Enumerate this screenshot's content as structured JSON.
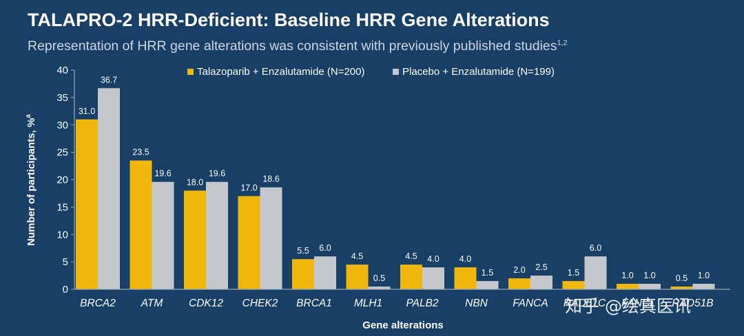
{
  "title": "TALAPRO-2 HRR-Deficient: Baseline HRR Gene Alterations",
  "subtitle": "Representation of HRR gene alterations was consistent with previously published studies",
  "subtitle_sup": "1,2",
  "watermark": "知乎 @绘真医讯",
  "colors": {
    "background": "#183f66",
    "series1": "#f0b80d",
    "series2": "#c4c7cb",
    "axis": "#9aa9bc",
    "text": "#ffffff"
  },
  "chart_data": {
    "type": "bar",
    "xlabel": "Gene alterations",
    "ylabel": "Number of participants, %",
    "ylabel_sup": "a",
    "ylim": [
      0,
      40
    ],
    "yticks": [
      0,
      5,
      10,
      15,
      20,
      25,
      30,
      35,
      40
    ],
    "grid": false,
    "legend_position": "top",
    "categories": [
      "BRCA2",
      "ATM",
      "CDK12",
      "CHEK2",
      "BRCA1",
      "MLH1",
      "PALB2",
      "NBN",
      "FANCA",
      "RAD51C",
      "FANCL",
      "RAD51B"
    ],
    "series": [
      {
        "name": "Talazoparib + Enzalutamide (N=200)",
        "values": [
          31.0,
          23.5,
          18.0,
          17.0,
          5.5,
          4.5,
          4.5,
          4.0,
          2.0,
          1.5,
          1.0,
          0.5
        ]
      },
      {
        "name": "Placebo + Enzalutamide (N=199)",
        "values": [
          36.7,
          19.6,
          19.6,
          18.6,
          6.0,
          0.5,
          4.0,
          1.5,
          2.5,
          6.0,
          1.0,
          1.0
        ]
      }
    ]
  }
}
